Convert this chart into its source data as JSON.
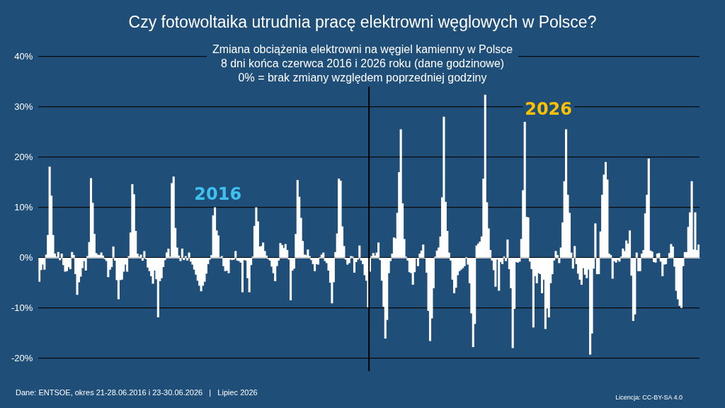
{
  "chart_data": {
    "type": "bar",
    "title": "Czy fotowoltaika utrudnia pracę elektrowni węglowych w Polsce?",
    "subtitle": "Zmiana obciążenia elektrowni na węgiel kamienny w Polsce\n8 dni końca czerwca 2016 i 2026 roku (dane godzinowe)\n0% = brak zmiany względem poprzedniej godziny",
    "categories": [
      null,
      null,
      null,
      null,
      null,
      null,
      null,
      null,
      null,
      null,
      null,
      null,
      null,
      null,
      null,
      null,
      null,
      null,
      null,
      null,
      null,
      null,
      null,
      null,
      null,
      null,
      null,
      null,
      null,
      null,
      null,
      null,
      null,
      null,
      null,
      null,
      null,
      null,
      null,
      null,
      null,
      null,
      null,
      null,
      null,
      null,
      null,
      null,
      null,
      null,
      null,
      null,
      null,
      null,
      null,
      null,
      null,
      null,
      null,
      null,
      null,
      null,
      null,
      null,
      null,
      null,
      null,
      null,
      null,
      null,
      null,
      null,
      null,
      null,
      null,
      null,
      null,
      null,
      null,
      null,
      null,
      null,
      null,
      null,
      null,
      null,
      null,
      null,
      null,
      null,
      null,
      null,
      null,
      null,
      null,
      null,
      null,
      null,
      null,
      null,
      null,
      null,
      null,
      null,
      null,
      null,
      null,
      null,
      null,
      null,
      null,
      null,
      null,
      null,
      null,
      null,
      null,
      null,
      null,
      null,
      null,
      null,
      null,
      null,
      null,
      null,
      null,
      null,
      null,
      null,
      null,
      null,
      null,
      null,
      null,
      null,
      null,
      null,
      null,
      null,
      null,
      null,
      null,
      null,
      null,
      null,
      null,
      null,
      null,
      null,
      null,
      null,
      null,
      null,
      null,
      null,
      null,
      null,
      null,
      null,
      null,
      null,
      null,
      null,
      null,
      null,
      null,
      null,
      null,
      null,
      null,
      null,
      null,
      null,
      null,
      null,
      null,
      null,
      null,
      null,
      null,
      null,
      null,
      null,
      null,
      null,
      null,
      null,
      null,
      null,
      null,
      null,
      null,
      null,
      null,
      null,
      null,
      null,
      null,
      null,
      null,
      null,
      null,
      null,
      null,
      null,
      null,
      null,
      null,
      null,
      null,
      null,
      null,
      null,
      null,
      null,
      null,
      null,
      null,
      null,
      null,
      null,
      null,
      null,
      null,
      null,
      null,
      null,
      null,
      null,
      null,
      null,
      null,
      null,
      null,
      null,
      null,
      null,
      null,
      null,
      null,
      null,
      null,
      null,
      null,
      null,
      null,
      null,
      null,
      null,
      null,
      null,
      null,
      null,
      null,
      null,
      null,
      null,
      null,
      null,
      null,
      null,
      null,
      null,
      null,
      null,
      null,
      null,
      null,
      null,
      null,
      null,
      null,
      null,
      null,
      null,
      null,
      null,
      null,
      null,
      null,
      null,
      null,
      null,
      null,
      null,
      null,
      null,
      null,
      null,
      null,
      null,
      null,
      null,
      null,
      null,
      null,
      null,
      null,
      null,
      null,
      null,
      null,
      null,
      null,
      null,
      null,
      null,
      null,
      null,
      null,
      null,
      null,
      null,
      null,
      null,
      null,
      null,
      null,
      null,
      null,
      null,
      null,
      null,
      null,
      null,
      null,
      null,
      null,
      null,
      null,
      null,
      null,
      null,
      null,
      null,
      null,
      null,
      null,
      null,
      null,
      null,
      null,
      null,
      null,
      null,
      null,
      null,
      null,
      null,
      null,
      null,
      null,
      null,
      null,
      null,
      null,
      null,
      null,
      null,
      null,
      null,
      null,
      null,
      null,
      null,
      null,
      null,
      null,
      null,
      null,
      null,
      null,
      null,
      null,
      null,
      null,
      null,
      null,
      null,
      null,
      null,
      null,
      null
    ],
    "series": [
      {
        "name": "2016",
        "color": "#ffffff",
        "values": [
          -4.7,
          -2.4,
          -1.3,
          -2.3,
          0.6,
          4.5,
          18.1,
          12.3,
          4.5,
          0.8,
          0.2,
          1.1,
          -0.4,
          0.8,
          -1.4,
          -2.7,
          -2.6,
          -1.8,
          -2.2,
          1.1,
          0.5,
          -3.2,
          -7.3,
          -4.8,
          -3.7,
          -2.0,
          -0.6,
          -2.5,
          0.3,
          3.1,
          15.8,
          10.9,
          4.7,
          0.9,
          0.6,
          0.5,
          1.0,
          0.4,
          -0.2,
          -0.6,
          -3.8,
          -2.3,
          -1.8,
          2.2,
          -0.5,
          -4.4,
          -8.2,
          -4.4,
          -4.3,
          -2.7,
          -1.3,
          -2.7,
          0.3,
          5.0,
          14.6,
          12.6,
          5.3,
          0.8,
          0.2,
          0.6,
          -0.5,
          1.3,
          -0.2,
          -1.9,
          -2.6,
          -3.6,
          -5.1,
          -2.5,
          -4.2,
          -11.8,
          -4.6,
          -4.0,
          -1.8,
          -0.4,
          1.0,
          1.8,
          0.2,
          14.8,
          16.1,
          5.9,
          2.0,
          0.4,
          -0.6,
          1.8,
          -0.4,
          0.3,
          -0.5,
          1.0,
          -0.7,
          -1.3,
          -2.3,
          -3.3,
          -4.5,
          -5.5,
          -6.6,
          -5.5,
          -4.7,
          -3.1,
          -1.2,
          -0.3,
          0.5,
          8.4,
          10.0,
          5.4,
          4.4,
          0.1,
          0.3,
          -1.6,
          -2.6,
          -2.5,
          -3.0,
          -0.3,
          -0.4,
          -0.3,
          1.3,
          -0.5,
          -0.6,
          -0.9,
          -6.8,
          -0.4,
          -0.5,
          -4.0,
          -6.8,
          -1.4,
          0.2,
          6.3,
          10.0,
          7.2,
          2.2,
          2.3,
          3.0,
          1.3,
          0.4,
          -0.2,
          -0.5,
          -1.7,
          -3.0,
          -4.6,
          -1.6,
          -0.5,
          2.9,
          2.5,
          1.9,
          2.7,
          1.5,
          -0.3,
          -8.4,
          -2.5,
          -2.1,
          4.7,
          15.4,
          12.1,
          7.9,
          3.3,
          0.6,
          0.5,
          1.6,
          0.3,
          -0.4,
          -1.2,
          -2.6,
          -1.2,
          -1.3,
          0.1,
          0.6,
          1.0,
          -0.6,
          -1.0,
          -2.5,
          -4.9,
          -9.0,
          -4.8,
          1.1,
          4.8,
          15.7,
          15.3,
          6.2,
          2.3,
          -0.3,
          -1.3,
          -1.0,
          0.3,
          0.2,
          -2.9,
          -0.8,
          -0.3,
          2.4,
          -0.5,
          -1.2,
          -3.4,
          -4.5,
          -9.8,
          null,
          null,
          null,
          null,
          null,
          null,
          null,
          null,
          null,
          null,
          null,
          null,
          null,
          null,
          null,
          null,
          null,
          null,
          null,
          null,
          null,
          null,
          null,
          null,
          null,
          null,
          null,
          null,
          null,
          null,
          null,
          null,
          null,
          null,
          null,
          null,
          null,
          null,
          null,
          null,
          null,
          null,
          null,
          null,
          null,
          null,
          null,
          null,
          null,
          null,
          null,
          null,
          null,
          null,
          null,
          null,
          null,
          null,
          null,
          null,
          null,
          null,
          null,
          null,
          null,
          null,
          null,
          null,
          null,
          null,
          null,
          null,
          null,
          null,
          null,
          null,
          null,
          null,
          null,
          null,
          null,
          null,
          null,
          null,
          null,
          null,
          null,
          null,
          null,
          null,
          null,
          null,
          null,
          null,
          null,
          null,
          null,
          null,
          null,
          null,
          null,
          null,
          null,
          null,
          null,
          null,
          null,
          null,
          null,
          null,
          null,
          null,
          null,
          null,
          null,
          null,
          null,
          null,
          null,
          null,
          null,
          null,
          null,
          null,
          null,
          null,
          null,
          null,
          null,
          null,
          null,
          null,
          null,
          null,
          null,
          null,
          null,
          null,
          null,
          null,
          null,
          null,
          null,
          null,
          null,
          null,
          null,
          null,
          null,
          null,
          null,
          null,
          null,
          null,
          null,
          null,
          null,
          null,
          null,
          null,
          null,
          null,
          null,
          null,
          null,
          null,
          null,
          null,
          null,
          null,
          null,
          null,
          null,
          null,
          null,
          null,
          null,
          null,
          null,
          null,
          null,
          null,
          null,
          null,
          null,
          null,
          null,
          null,
          null,
          null,
          null,
          null
        ]
      },
      {
        "name": "2026",
        "color": "#ffffff",
        "values": [
          null,
          null,
          null,
          null,
          null,
          null,
          null,
          null,
          null,
          null,
          null,
          null,
          null,
          null,
          null,
          null,
          null,
          null,
          null,
          null,
          null,
          null,
          null,
          null,
          null,
          null,
          null,
          null,
          null,
          null,
          null,
          null,
          null,
          null,
          null,
          null,
          null,
          null,
          null,
          null,
          null,
          null,
          null,
          null,
          null,
          null,
          null,
          null,
          null,
          null,
          null,
          null,
          null,
          null,
          null,
          null,
          null,
          null,
          null,
          null,
          null,
          null,
          null,
          null,
          null,
          null,
          null,
          null,
          null,
          null,
          null,
          null,
          null,
          null,
          null,
          null,
          null,
          null,
          null,
          null,
          null,
          null,
          null,
          null,
          null,
          null,
          null,
          null,
          null,
          null,
          null,
          null,
          null,
          null,
          null,
          null,
          null,
          null,
          null,
          null,
          null,
          null,
          null,
          null,
          null,
          null,
          null,
          null,
          null,
          null,
          null,
          null,
          null,
          null,
          null,
          null,
          null,
          null,
          null,
          null,
          null,
          null,
          null,
          null,
          null,
          null,
          null,
          null,
          null,
          null,
          null,
          null,
          null,
          null,
          null,
          null,
          null,
          null,
          null,
          null,
          null,
          null,
          null,
          null,
          null,
          null,
          null,
          null,
          null,
          null,
          null,
          null,
          null,
          null,
          null,
          null,
          null,
          null,
          null,
          null,
          null,
          null,
          null,
          null,
          null,
          null,
          null,
          null,
          null,
          null,
          null,
          null,
          null,
          null,
          null,
          null,
          null,
          null,
          null,
          null,
          null,
          null,
          null,
          null,
          null,
          null,
          null,
          null,
          null,
          null,
          null,
          null,
          -2.7,
          0.3,
          0.9,
          0.4,
          1.0,
          3.0,
          -0.4,
          -4.5,
          -9.7,
          -16.0,
          -12.3,
          -3.0,
          -0.6,
          0.8,
          4.0,
          3.8,
          8.9,
          17.0,
          25.5,
          10.8,
          3.7,
          0.2,
          -0.5,
          -2.8,
          -3.0,
          -5.3,
          -2.8,
          -0.1,
          -1.6,
          0.8,
          1.4,
          2.6,
          -0.1,
          -2.9,
          -10.5,
          -16.5,
          -12.0,
          -6.0,
          0.2,
          1.4,
          2.0,
          4.2,
          12.0,
          28.0,
          11.1,
          5.3,
          1.0,
          -0.5,
          -4.3,
          -7.0,
          -5.9,
          -3.4,
          -2.6,
          -2.3,
          -2.0,
          -1.6,
          0.1,
          -1.3,
          -5.0,
          -11.0,
          -17.7,
          -13.1,
          2.4,
          2.8,
          3.2,
          4.2,
          15.7,
          32.4,
          11.0,
          5.8,
          1.5,
          -0.5,
          -2.4,
          -5.7,
          -0.3,
          -6.5,
          -0.8,
          -1.2,
          0.2,
          -0.6,
          3.6,
          -2.2,
          -6.0,
          -17.9,
          -10.1,
          -0.8,
          -0.9,
          -0.7,
          3.7,
          13.4,
          27.0,
          8.1,
          8.0,
          -0.7,
          -2.2,
          -13.8,
          -3.6,
          -5.0,
          -3.0,
          -3.2,
          -7.0,
          -4.3,
          -14.1,
          -10.0,
          -11.8,
          -5.0,
          -3.2,
          -0.5,
          1.3,
          0.5,
          -1.0,
          2.0,
          7.0,
          15.2,
          25.5,
          12.5,
          8.9,
          1.0,
          -2.1,
          2.3,
          -1.2,
          -3.1,
          -4.3,
          -5.3,
          -2.0,
          -3.3,
          -4.0,
          -2.3,
          -19.2,
          -15.0,
          -2.1,
          6.8,
          -3.2,
          -3.2,
          5.2,
          12.5,
          16.5,
          19.0,
          15.5,
          0.8,
          0.5,
          -4.1,
          -0.6,
          -0.9,
          -0.4,
          -0.7,
          0.2,
          1.8,
          1.3,
          3.4,
          2.8,
          5.4,
          -3.5,
          -12.5,
          -11.2,
          1.0,
          -2.6,
          -2.6,
          0.8,
          1.5,
          8.8,
          12.5,
          19.7,
          1.4,
          1.2,
          -0.8,
          -0.9,
          0.8,
          0.9,
          -0.7,
          -3.6,
          -1.3,
          -1.2,
          -0.1,
          0.9,
          2.7,
          2.2,
          -1.7,
          -6.5,
          -8.2,
          -9.5,
          -9.9,
          -1.6,
          1.1,
          1.1,
          6.1,
          9.0,
          15.2,
          1.6,
          9.0,
          1.5,
          2.6
        ]
      }
    ],
    "ylim": [
      -20,
      40
    ],
    "yticks": [
      {
        "value": -20,
        "label": "-20%"
      },
      {
        "value": -10,
        "label": "-10%"
      },
      {
        "value": 0,
        "label": "0%"
      },
      {
        "value": 10,
        "label": "10%"
      },
      {
        "value": 20,
        "label": "20%"
      },
      {
        "value": 30,
        "label": "30%"
      },
      {
        "value": 40,
        "label": "40%"
      }
    ],
    "grid": "y",
    "legend": false,
    "tick_labels": "y",
    "annotations": [
      "Dane: ENTSOE, okres 21-28.06.2016 i 23-30.06.2026   |   Lipiec 2026",
      "Licencja: CC-BY-SA 4.0"
    ]
  }
}
